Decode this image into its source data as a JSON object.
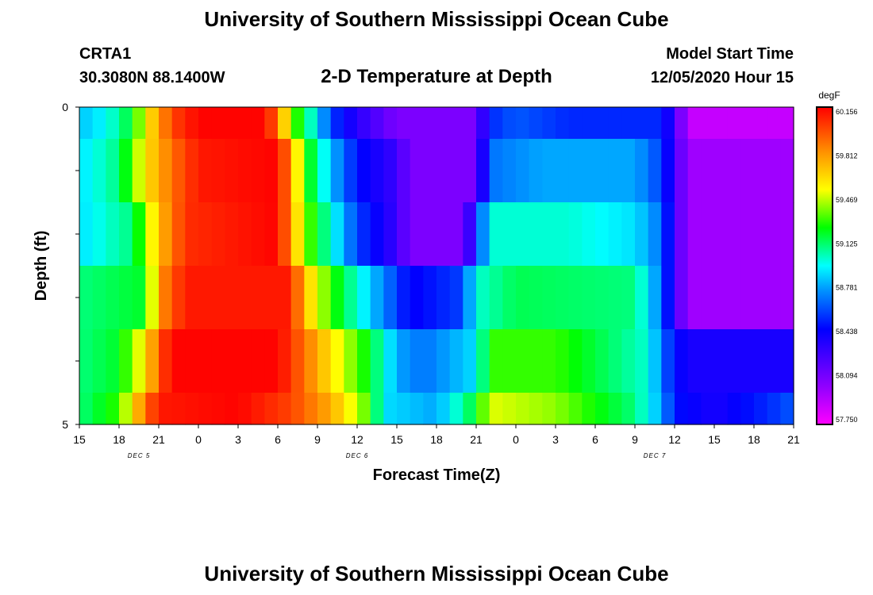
{
  "header": {
    "title": "University of Southern Mississippi Ocean Cube",
    "station": "CRTA1",
    "coords": "30.3080N 88.1400W",
    "plot_title": "2-D Temperature at Depth",
    "model_start_label": "Model Start Time",
    "model_start_value": "12/05/2020 Hour 15"
  },
  "footer": {
    "title": "University of Southern Mississippi Ocean Cube"
  },
  "chart_data": {
    "type": "heatmap",
    "title": "2-D Temperature at Depth",
    "xlabel": "Forecast Time(Z)",
    "ylabel": "Depth (ft)",
    "ylim": [
      0,
      5
    ],
    "y_tick_labels": [
      "0",
      "5"
    ],
    "x_tick_labels": [
      "15",
      "18",
      "21",
      "0",
      "3",
      "6",
      "9",
      "12",
      "15",
      "18",
      "21",
      "0",
      "3",
      "6",
      "9",
      "12",
      "15",
      "18",
      "21"
    ],
    "date_labels": [
      {
        "text": "DEC 5",
        "at_tick": 1.5
      },
      {
        "text": "DEC 6",
        "at_tick": 7
      },
      {
        "text": "DEC 7",
        "at_tick": 14.5
      }
    ],
    "x_hours_range": [
      0,
      54
    ],
    "legend": {
      "unit": "degF",
      "values": [
        60.156,
        59.812,
        59.469,
        59.125,
        58.781,
        58.438,
        58.094,
        57.75
      ],
      "min": 57.75,
      "max": 60.156,
      "placement": "right"
    },
    "rows": [
      {
        "depth_range": [
          0,
          0.5
        ],
        "points": [
          [
            0,
            58.85
          ],
          [
            2,
            58.95
          ],
          [
            4,
            59.2
          ],
          [
            5,
            59.55
          ],
          [
            7,
            60.0
          ],
          [
            9,
            60.15
          ],
          [
            14,
            60.15
          ],
          [
            15,
            59.9
          ],
          [
            16,
            59.4
          ],
          [
            18,
            58.9
          ],
          [
            19,
            58.6
          ],
          [
            21,
            58.35
          ],
          [
            24,
            58.1
          ],
          [
            26,
            58.1
          ],
          [
            30,
            58.1
          ],
          [
            31,
            58.55
          ],
          [
            33,
            58.65
          ],
          [
            37,
            58.55
          ],
          [
            44,
            58.55
          ],
          [
            45,
            58.3
          ],
          [
            46,
            57.9
          ],
          [
            54,
            57.9
          ]
        ]
      },
      {
        "depth_range": [
          0.5,
          1.5
        ],
        "points": [
          [
            0,
            58.9
          ],
          [
            3,
            59.1
          ],
          [
            5,
            59.6
          ],
          [
            7,
            59.9
          ],
          [
            9,
            60.1
          ],
          [
            15,
            60.15
          ],
          [
            16,
            59.8
          ],
          [
            17,
            59.3
          ],
          [
            19,
            58.85
          ],
          [
            21,
            58.5
          ],
          [
            24,
            58.3
          ],
          [
            25,
            58.1
          ],
          [
            30,
            58.1
          ],
          [
            31,
            58.7
          ],
          [
            35,
            58.8
          ],
          [
            42,
            58.8
          ],
          [
            44,
            58.6
          ],
          [
            45,
            58.3
          ],
          [
            46,
            58.0
          ],
          [
            54,
            58.0
          ]
        ]
      },
      {
        "depth_range": [
          1.5,
          2.5
        ],
        "points": [
          [
            0,
            58.9
          ],
          [
            4,
            59.1
          ],
          [
            6,
            59.7
          ],
          [
            8,
            60.05
          ],
          [
            15,
            60.15
          ],
          [
            16,
            59.8
          ],
          [
            17,
            59.4
          ],
          [
            19,
            59.0
          ],
          [
            21,
            58.6
          ],
          [
            24,
            58.3
          ],
          [
            25,
            58.1
          ],
          [
            29,
            58.1
          ],
          [
            30,
            58.5
          ],
          [
            31,
            59.0
          ],
          [
            37,
            59.0
          ],
          [
            42,
            58.9
          ],
          [
            44,
            58.7
          ],
          [
            45,
            58.3
          ],
          [
            46,
            58.0
          ],
          [
            54,
            58.0
          ]
        ]
      },
      {
        "depth_range": [
          2.5,
          3.5
        ],
        "points": [
          [
            0,
            59.1
          ],
          [
            5,
            59.2
          ],
          [
            6,
            59.8
          ],
          [
            8,
            60.1
          ],
          [
            16,
            60.1
          ],
          [
            17,
            59.7
          ],
          [
            19,
            59.3
          ],
          [
            21,
            59.0
          ],
          [
            24,
            58.6
          ],
          [
            25,
            58.45
          ],
          [
            29,
            58.6
          ],
          [
            30,
            59.0
          ],
          [
            33,
            59.15
          ],
          [
            42,
            59.1
          ],
          [
            44,
            58.7
          ],
          [
            45,
            58.3
          ],
          [
            46,
            58.0
          ],
          [
            54,
            58.0
          ]
        ]
      },
      {
        "depth_range": [
          3.5,
          4.5
        ],
        "points": [
          [
            0,
            59.1
          ],
          [
            3,
            59.2
          ],
          [
            5,
            59.6
          ],
          [
            6,
            59.95
          ],
          [
            7,
            60.15
          ],
          [
            15,
            60.15
          ],
          [
            17,
            59.9
          ],
          [
            19,
            59.6
          ],
          [
            22,
            59.2
          ],
          [
            24,
            58.8
          ],
          [
            26,
            58.7
          ],
          [
            30,
            58.9
          ],
          [
            31,
            59.3
          ],
          [
            36,
            59.3
          ],
          [
            43,
            59.0
          ],
          [
            44,
            58.7
          ],
          [
            45,
            58.5
          ],
          [
            46,
            58.4
          ],
          [
            54,
            58.4
          ]
        ]
      },
      {
        "depth_range": [
          4.5,
          5
        ],
        "points": [
          [
            0,
            59.1
          ],
          [
            3,
            59.3
          ],
          [
            4,
            59.6
          ],
          [
            5,
            59.9
          ],
          [
            6,
            60.1
          ],
          [
            12,
            60.15
          ],
          [
            16,
            60.0
          ],
          [
            19,
            59.75
          ],
          [
            22,
            59.3
          ],
          [
            23,
            58.9
          ],
          [
            27,
            58.8
          ],
          [
            30,
            59.2
          ],
          [
            31,
            59.5
          ],
          [
            36,
            59.4
          ],
          [
            42,
            59.1
          ],
          [
            44,
            58.8
          ],
          [
            45,
            58.5
          ],
          [
            48,
            58.4
          ],
          [
            52,
            58.55
          ],
          [
            54,
            58.65
          ]
        ]
      }
    ]
  }
}
